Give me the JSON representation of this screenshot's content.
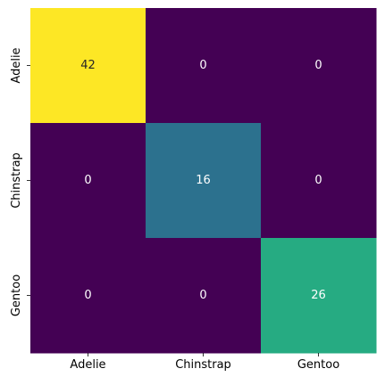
{
  "chart_data": {
    "type": "heatmap",
    "rows": [
      "Adelie",
      "Chinstrap",
      "Gentoo"
    ],
    "columns": [
      "Adelie",
      "Chinstrap",
      "Gentoo"
    ],
    "values": [
      [
        42,
        0,
        0
      ],
      [
        0,
        16,
        0
      ],
      [
        0,
        0,
        26
      ]
    ],
    "colormap": "viridis",
    "vmin": 0,
    "vmax": 42,
    "annotations": true,
    "colorbar": false,
    "title": "",
    "xlabel": "",
    "ylabel": ""
  }
}
